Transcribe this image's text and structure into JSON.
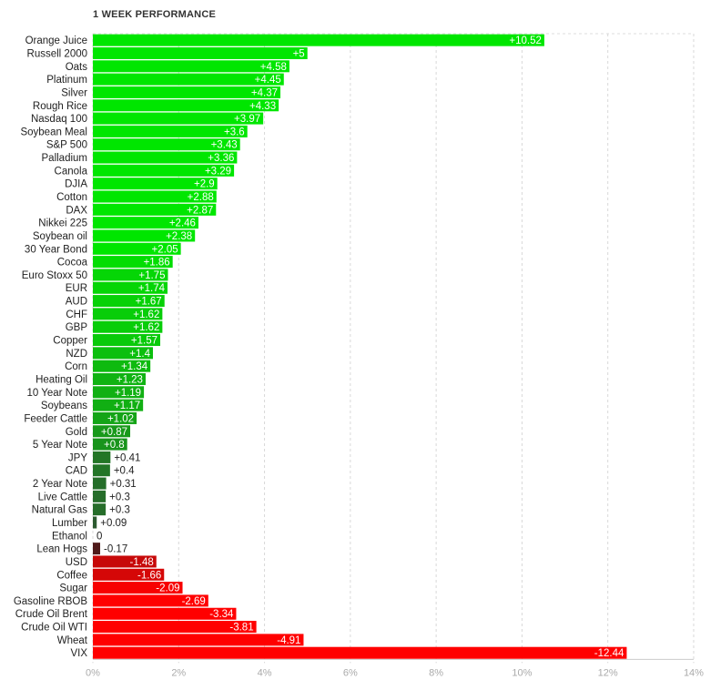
{
  "chart_data": {
    "type": "bar",
    "orientation": "horizontal",
    "title": "1 WEEK PERFORMANCE",
    "xlabel": "",
    "ylabel": "",
    "xlim": [
      0,
      14
    ],
    "x_ticks": [
      "0%",
      "2%",
      "4%",
      "6%",
      "8%",
      "10%",
      "12%",
      "14%"
    ],
    "grid": true,
    "colors": {
      "positive_strong": "#00e600",
      "positive_weak": "#2f4f34",
      "negative_weak": "#3a1f1f",
      "negative_strong": "#ff0000"
    },
    "categories": [
      "Orange Juice",
      "Russell 2000",
      "Oats",
      "Platinum",
      "Silver",
      "Rough Rice",
      "Nasdaq 100",
      "Soybean Meal",
      "S&P 500",
      "Palladium",
      "Canola",
      "DJIA",
      "Cotton",
      "DAX",
      "Nikkei 225",
      "Soybean oil",
      "30 Year Bond",
      "Cocoa",
      "Euro Stoxx 50",
      "EUR",
      "AUD",
      "CHF",
      "GBP",
      "Copper",
      "NZD",
      "Corn",
      "Heating Oil",
      "10 Year Note",
      "Soybeans",
      "Feeder Cattle",
      "Gold",
      "5 Year Note",
      "JPY",
      "CAD",
      "2 Year Note",
      "Live Cattle",
      "Natural Gas",
      "Lumber",
      "Ethanol",
      "Lean Hogs",
      "USD",
      "Coffee",
      "Sugar",
      "Gasoline RBOB",
      "Crude Oil Brent",
      "Crude Oil WTI",
      "Wheat",
      "VIX"
    ],
    "values": [
      10.52,
      5,
      4.58,
      4.45,
      4.37,
      4.33,
      3.97,
      3.6,
      3.43,
      3.36,
      3.29,
      2.9,
      2.88,
      2.87,
      2.46,
      2.38,
      2.05,
      1.86,
      1.75,
      1.74,
      1.67,
      1.62,
      1.62,
      1.57,
      1.4,
      1.34,
      1.23,
      1.19,
      1.17,
      1.02,
      0.87,
      0.8,
      0.41,
      0.4,
      0.31,
      0.3,
      0.3,
      0.09,
      0,
      -0.17,
      -1.48,
      -1.66,
      -2.09,
      -2.69,
      -3.34,
      -3.81,
      -4.91,
      -12.44
    ],
    "value_labels": [
      "+10.52",
      "+5",
      "+4.58",
      "+4.45",
      "+4.37",
      "+4.33",
      "+3.97",
      "+3.6",
      "+3.43",
      "+3.36",
      "+3.29",
      "+2.9",
      "+2.88",
      "+2.87",
      "+2.46",
      "+2.38",
      "+2.05",
      "+1.86",
      "+1.75",
      "+1.74",
      "+1.67",
      "+1.62",
      "+1.62",
      "+1.57",
      "+1.4",
      "+1.34",
      "+1.23",
      "+1.19",
      "+1.17",
      "+1.02",
      "+0.87",
      "+0.8",
      "+0.41",
      "+0.4",
      "+0.31",
      "+0.3",
      "+0.3",
      "+0.09",
      "0",
      "-0.17",
      "-1.48",
      "-1.66",
      "-2.09",
      "-2.69",
      "-3.34",
      "-3.81",
      "-4.91",
      "-12.44"
    ]
  }
}
